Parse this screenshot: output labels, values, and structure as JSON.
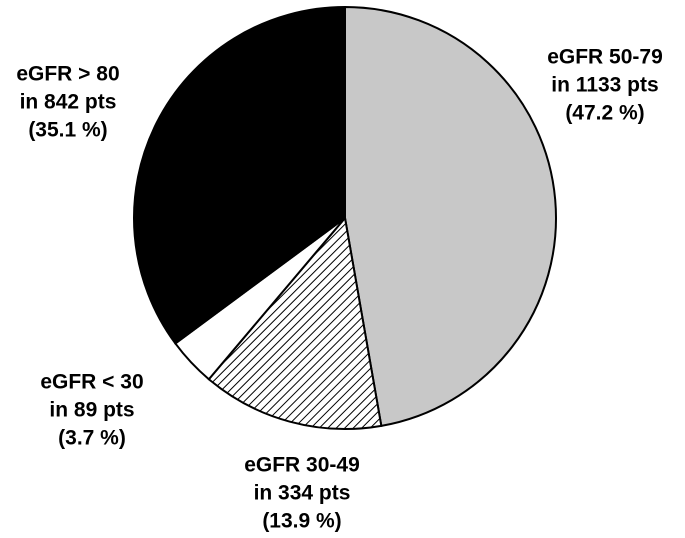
{
  "chart_data": {
    "type": "pie",
    "categories": [
      "eGFR 50-79",
      "eGFR 30-49",
      "eGFR < 30",
      "eGFR > 80"
    ],
    "count_labels": [
      "in 1133 pts",
      "in 334 pts",
      "in 89 pts",
      "in 842 pts"
    ],
    "values": [
      47.2,
      13.9,
      3.7,
      35.1
    ],
    "value_labels": [
      "(47.2 %)",
      "(13.9 %)",
      "(3.7 %)",
      "(35.1 %)"
    ],
    "colors": [
      "#c8c8c8",
      "#ffffff",
      "#ffffff",
      "#000000"
    ],
    "patterns": [
      null,
      "hatch",
      null,
      null
    ]
  }
}
